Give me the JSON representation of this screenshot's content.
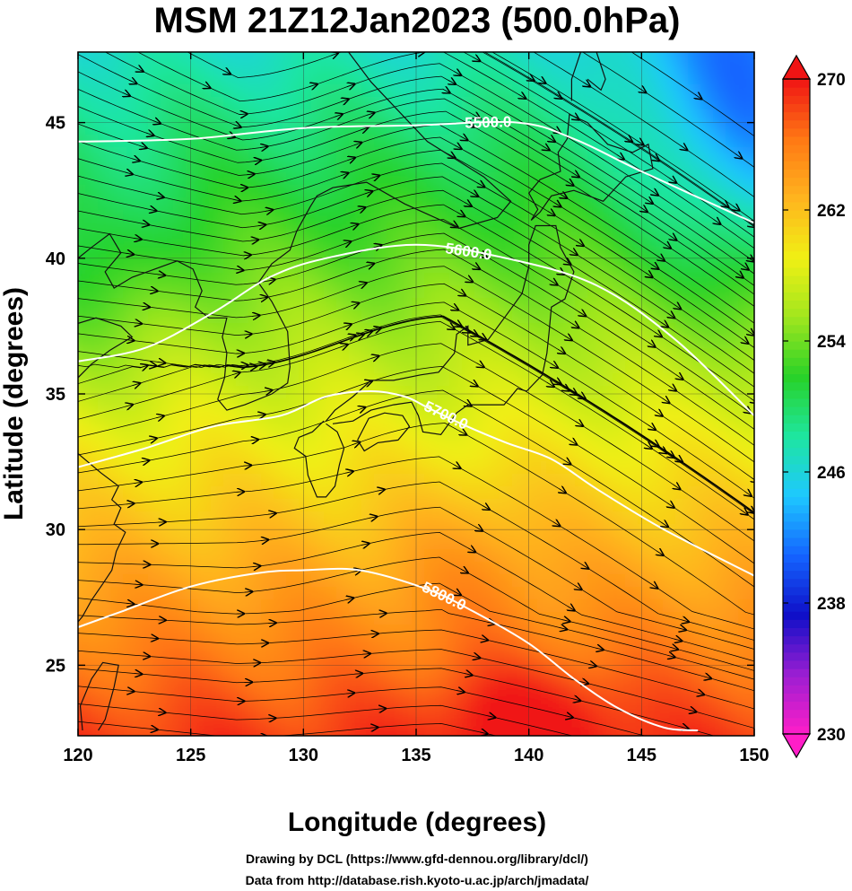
{
  "chart_data": {
    "type": "heatmap",
    "title": "MSM 21Z12Jan2023 (500.0hPa)",
    "xlabel": "Longitude (degrees)",
    "ylabel": "Latitude  (degrees)",
    "xlim": [
      120,
      150
    ],
    "ylim": [
      22.4,
      47.6
    ],
    "x_ticks": [
      120,
      125,
      130,
      135,
      140,
      145,
      150
    ],
    "y_ticks": [
      25,
      30,
      35,
      40,
      45
    ],
    "grid": true,
    "field": "temperature",
    "colorbar": {
      "range": [
        230,
        270
      ],
      "ticks": [
        230,
        238,
        246,
        254,
        262,
        270
      ],
      "colors": [
        "#ff1ec8",
        "#9b1ed2",
        "#0f0fc8",
        "#1464ff",
        "#1ec8ff",
        "#1ee6a0",
        "#28d228",
        "#a0e61e",
        "#f0f014",
        "#ffb41e",
        "#ff7814",
        "#f01414"
      ],
      "extend": "both",
      "position": "right"
    },
    "contours": [
      {
        "label": "5500.0",
        "points": [
          [
            120,
            44.3
          ],
          [
            125,
            44.4
          ],
          [
            130,
            44.8
          ],
          [
            135,
            44.9
          ],
          [
            139.5,
            45.0
          ],
          [
            142,
            44.4
          ],
          [
            145,
            43.2
          ],
          [
            150,
            41.3
          ]
        ]
      },
      {
        "label": "5600.0",
        "points": [
          [
            120,
            36.2
          ],
          [
            123,
            36.7
          ],
          [
            126,
            38.0
          ],
          [
            128.5,
            39.3
          ],
          [
            131,
            40.0
          ],
          [
            135,
            40.5
          ],
          [
            139,
            40.0
          ],
          [
            143,
            39.0
          ],
          [
            146.5,
            37.0
          ],
          [
            150,
            34.2
          ]
        ]
      },
      {
        "label": "5700.0",
        "points": [
          [
            120,
            32.3
          ],
          [
            123,
            33.0
          ],
          [
            126,
            33.8
          ],
          [
            129,
            34.2
          ],
          [
            131,
            34.9
          ],
          [
            133,
            35.1
          ],
          [
            134.5,
            34.9
          ],
          [
            135.5,
            34.5
          ],
          [
            137,
            33.9
          ],
          [
            139,
            33.2
          ],
          [
            141,
            32.6
          ],
          [
            143,
            31.5
          ],
          [
            146,
            30.0
          ],
          [
            150,
            28.3
          ]
        ]
      },
      {
        "label": "5800.0",
        "points": [
          [
            120,
            26.4
          ],
          [
            122,
            27.0
          ],
          [
            125,
            27.9
          ],
          [
            128,
            28.4
          ],
          [
            130,
            28.5
          ],
          [
            132.5,
            28.5
          ],
          [
            135.5,
            27.8
          ],
          [
            137.5,
            27.0
          ],
          [
            140,
            25.8
          ],
          [
            142,
            24.5
          ],
          [
            144,
            23.4
          ],
          [
            146,
            22.7
          ],
          [
            147.5,
            22.6
          ]
        ]
      }
    ],
    "wind": "streamlines"
  },
  "credits": {
    "line1": "Drawing by DCL (https://www.gfd-dennou.org/library/dcl/)",
    "line2": "Data from http://database.rish.kyoto-u.ac.jp/arch/jmadata/"
  }
}
